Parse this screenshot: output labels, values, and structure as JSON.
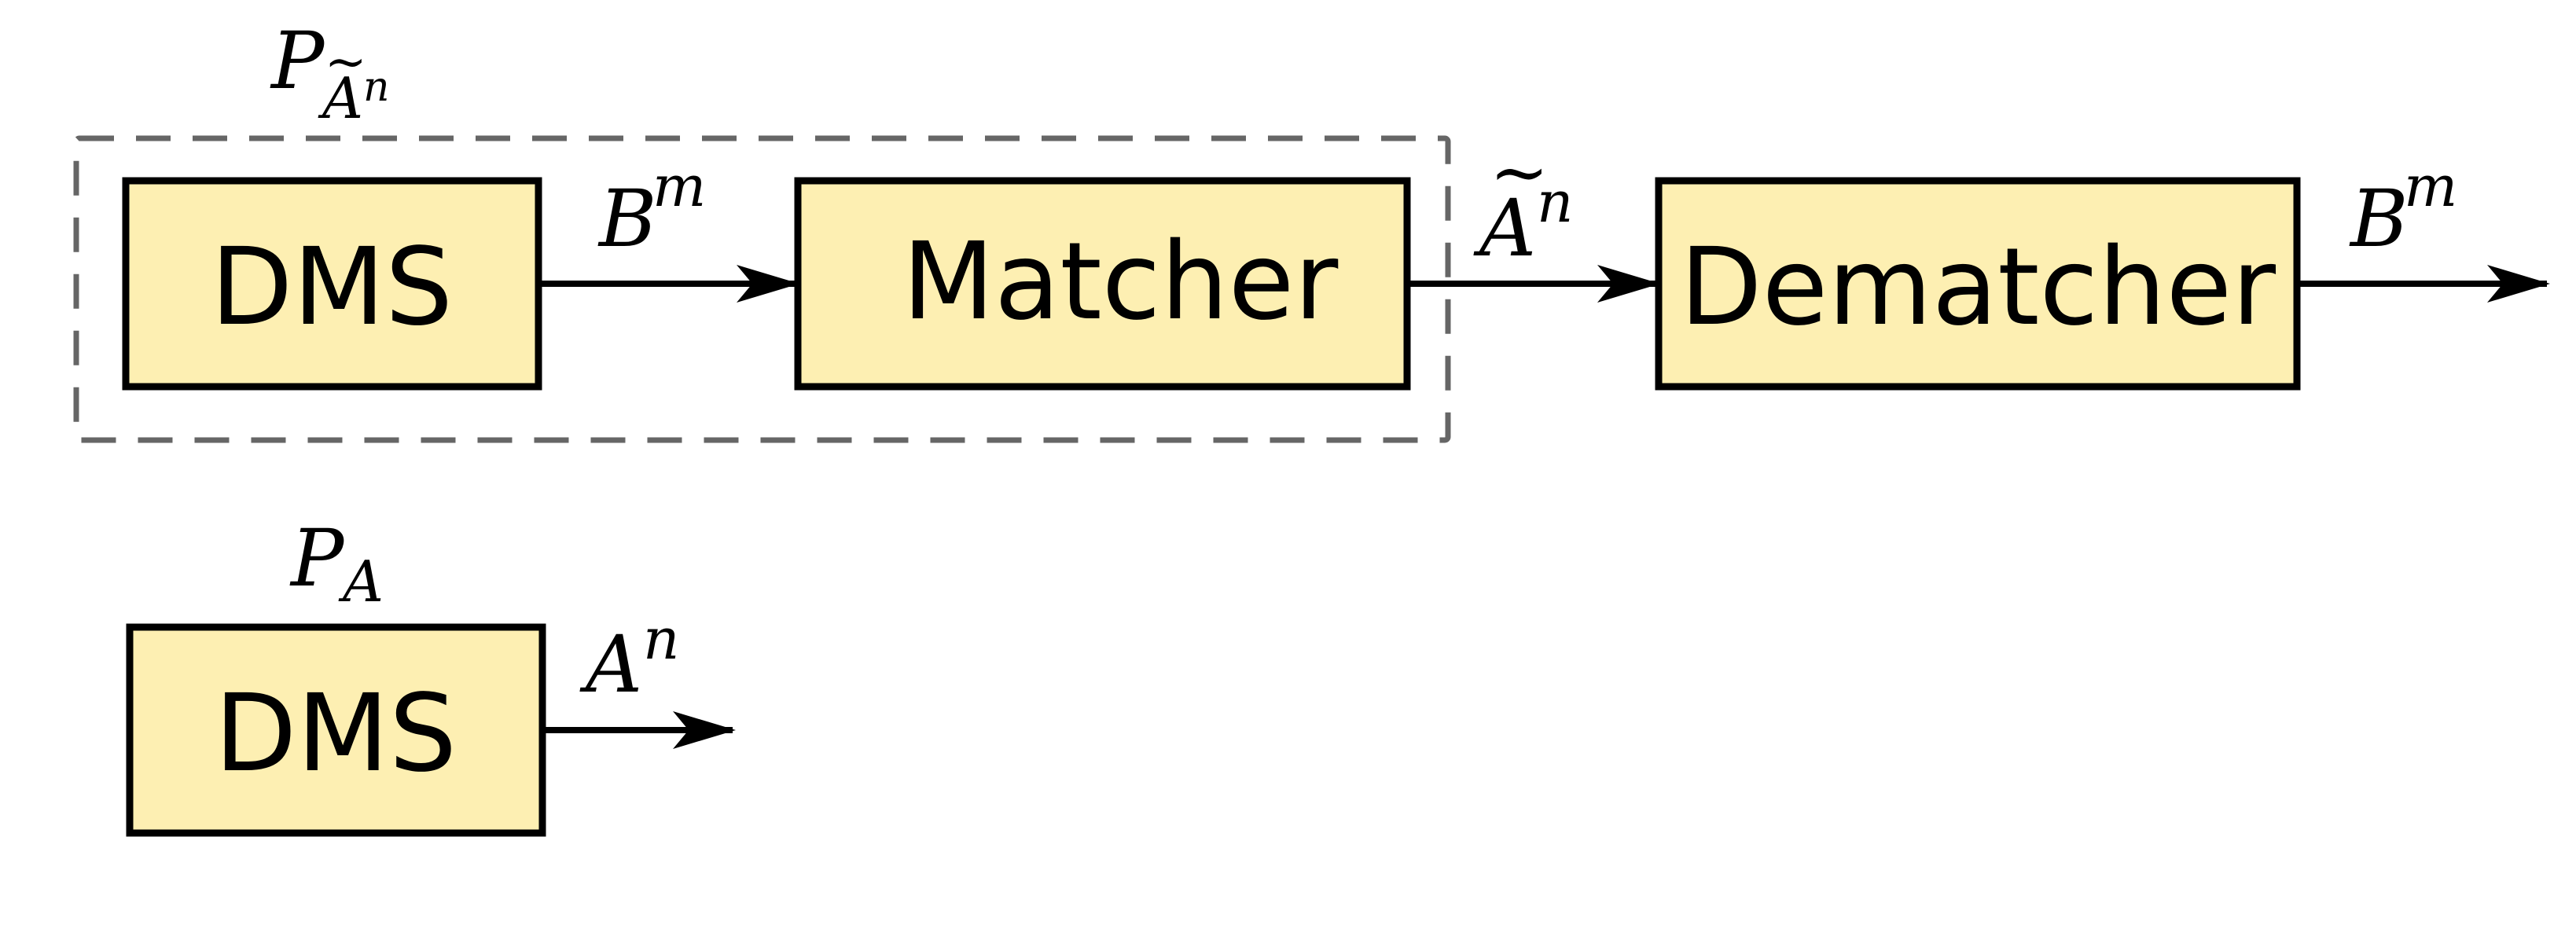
{
  "colors": {
    "block_fill": "#fdefb2",
    "block_stroke": "#000000",
    "signal": "#000000",
    "group_outline": "#666666"
  },
  "blocks": {
    "dms_top": "DMS",
    "matcher": "Matcher",
    "dematcher": "Dematcher",
    "dms_bottom": "DMS"
  },
  "labels": {
    "group_top": {
      "base": "P",
      "sub": "A",
      "subsub": "n",
      "sub_tilde": "~"
    },
    "group_bottom": {
      "base": "P",
      "sub": "A"
    },
    "signal_dms_matcher": {
      "base": "B",
      "sup": "m"
    },
    "signal_matcher_dematcher": {
      "base": "A",
      "sup": "n",
      "tilde": "~"
    },
    "signal_dematcher_out": {
      "base": "B",
      "sup": "m"
    },
    "signal_dms_bottom_out": {
      "base": "A",
      "sup": "n"
    }
  }
}
